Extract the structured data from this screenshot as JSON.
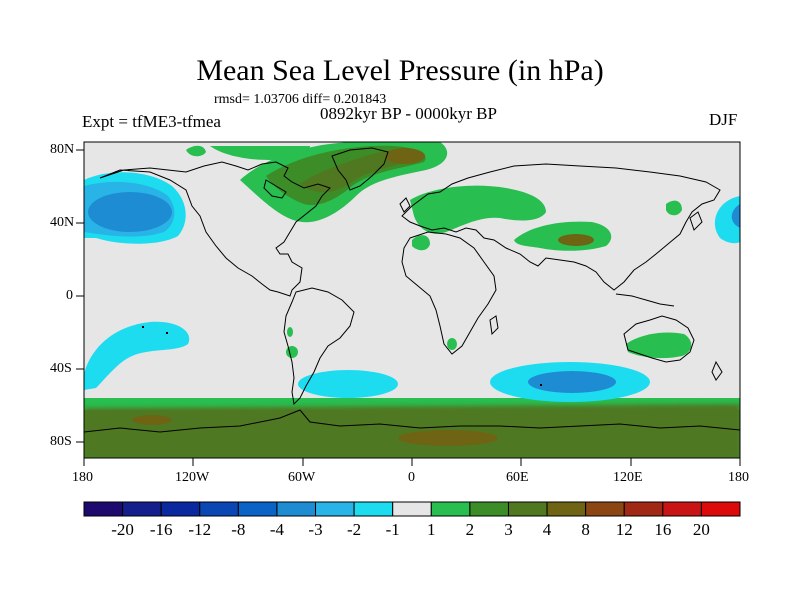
{
  "title": "Mean Sea Level Pressure (in hPa)",
  "stats": "rmsd= 1.03706 diff= 0.201843",
  "experiment": "Expt = tfME3-tfmea",
  "period": "0892kyr BP - 0000kyr BP",
  "season": "DJF",
  "map": {
    "lon_labels": [
      "180",
      "120W",
      "60W",
      "0",
      "60E",
      "120E",
      "180"
    ],
    "lat_labels": [
      "80N",
      "40N",
      "0",
      "40S",
      "80S"
    ],
    "background_color": "#e6e6e6",
    "coastline_color": "#000000"
  },
  "colorbar": {
    "labels": [
      "-20",
      "-16",
      "-12",
      "-8",
      "-4",
      "-3",
      "-2",
      "-1",
      "1",
      "2",
      "3",
      "4",
      "8",
      "12",
      "16",
      "20"
    ],
    "colors": [
      "#1e0a6e",
      "#141e8c",
      "#0a28a0",
      "#0a46b4",
      "#0a64c8",
      "#1e8cd2",
      "#28b4e6",
      "#1edcf0",
      "#e6e6e6",
      "#28be50",
      "#3c8c28",
      "#507820",
      "#6e6414",
      "#8c4614",
      "#a02814",
      "#c81414",
      "#dc0a0a"
    ]
  }
}
